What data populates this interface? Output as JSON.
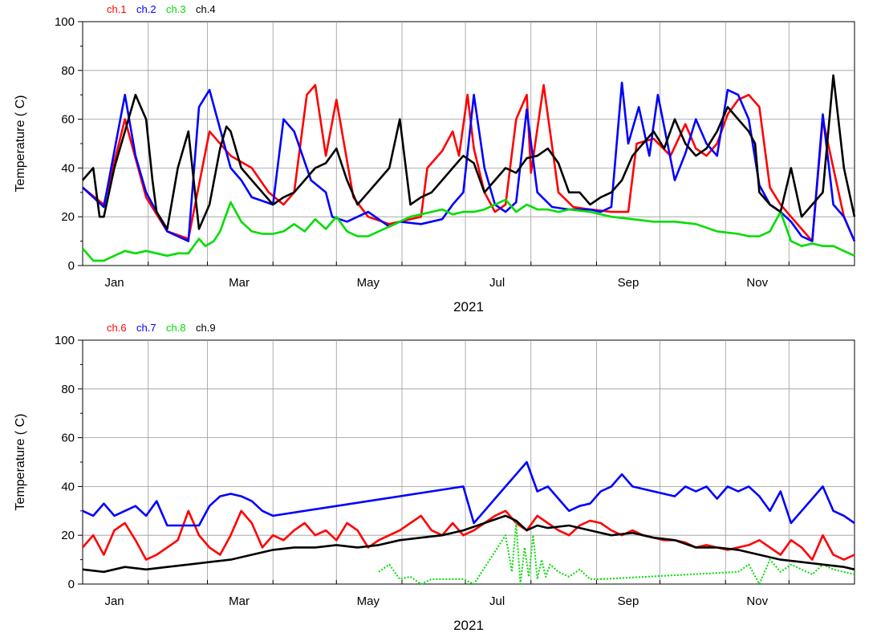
{
  "chart_data": [
    {
      "type": "line",
      "xlabel": "2021",
      "ylabel": "Temperature ( C)",
      "ylim": [
        0,
        100
      ],
      "yticks": [
        0,
        20,
        40,
        60,
        80,
        100
      ],
      "xlim": [
        0,
        365
      ],
      "month_ticks": [
        {
          "label": "Jan",
          "day": 15
        },
        {
          "label": "Mar",
          "day": 74
        },
        {
          "label": "May",
          "day": 135
        },
        {
          "label": "Jul",
          "day": 196
        },
        {
          "label": "Sep",
          "day": 258
        },
        {
          "label": "Nov",
          "day": 319
        }
      ],
      "grid": true,
      "legend_position": "top-left",
      "series": [
        {
          "name": "ch.1",
          "color": "#ff0000",
          "x": [
            0,
            10,
            20,
            30,
            40,
            50,
            60,
            70,
            80,
            88,
            95,
            100,
            106,
            110,
            115,
            120,
            128,
            135,
            145,
            150,
            160,
            163,
            170,
            175,
            178,
            182,
            185,
            190,
            195,
            200,
            205,
            210,
            212,
            218,
            225,
            232,
            240,
            250,
            258,
            262,
            270,
            278,
            285,
            290,
            295,
            300,
            305,
            310,
            315,
            320,
            325,
            330,
            335,
            340,
            345,
            350,
            355,
            360,
            365
          ],
          "y": [
            32,
            25,
            60,
            28,
            14,
            11,
            55,
            45,
            40,
            30,
            25,
            30,
            70,
            74,
            45,
            68,
            28,
            20,
            17,
            18,
            20,
            40,
            47,
            55,
            45,
            70,
            48,
            30,
            22,
            25,
            60,
            70,
            38,
            74,
            30,
            24,
            23,
            22,
            22,
            50,
            52,
            45,
            58,
            48,
            45,
            50,
            62,
            68,
            70,
            65,
            32,
            25,
            20,
            15,
            10,
            60,
            40,
            20,
            10
          ]
        },
        {
          "name": "ch.2",
          "color": "#0000ff",
          "x": [
            0,
            10,
            20,
            25,
            30,
            40,
            50,
            55,
            60,
            70,
            75,
            80,
            90,
            95,
            100,
            108,
            115,
            118,
            125,
            135,
            145,
            150,
            160,
            170,
            175,
            180,
            185,
            190,
            195,
            200,
            205,
            210,
            215,
            222,
            230,
            240,
            245,
            250,
            255,
            258,
            263,
            268,
            272,
            280,
            285,
            290,
            295,
            300,
            305,
            310,
            315,
            320,
            325,
            330,
            335,
            340,
            345,
            350,
            355,
            360,
            365
          ],
          "y": [
            32,
            24,
            70,
            45,
            30,
            14,
            10,
            65,
            72,
            40,
            35,
            28,
            25,
            60,
            55,
            35,
            30,
            20,
            18,
            22,
            16,
            18,
            17,
            19,
            25,
            30,
            70,
            40,
            25,
            22,
            26,
            64,
            30,
            24,
            23,
            23,
            22,
            24,
            75,
            50,
            65,
            45,
            70,
            35,
            46,
            60,
            50,
            45,
            72,
            70,
            60,
            33,
            25,
            22,
            18,
            12,
            10,
            62,
            25,
            20,
            10
          ]
        },
        {
          "name": "ch.3",
          "color": "#00dd00",
          "x": [
            0,
            5,
            10,
            15,
            20,
            25,
            30,
            35,
            40,
            45,
            50,
            55,
            58,
            62,
            65,
            70,
            75,
            80,
            85,
            90,
            95,
            100,
            105,
            110,
            115,
            120,
            125,
            130,
            135,
            140,
            145,
            150,
            155,
            160,
            165,
            170,
            175,
            180,
            185,
            190,
            195,
            200,
            205,
            210,
            215,
            220,
            225,
            230,
            240,
            250,
            260,
            270,
            280,
            290,
            300,
            310,
            315,
            320,
            325,
            330,
            335,
            340,
            345,
            350,
            355,
            360,
            365
          ],
          "y": [
            7,
            2,
            2,
            4,
            6,
            5,
            6,
            5,
            4,
            5,
            5,
            11,
            8,
            10,
            14,
            26,
            18,
            14,
            13,
            13,
            14,
            17,
            14,
            19,
            15,
            20,
            14,
            12,
            12,
            14,
            16,
            18,
            20,
            21,
            22,
            23,
            21,
            22,
            22,
            23,
            25,
            27,
            22,
            25,
            23,
            23,
            22,
            23,
            22,
            20,
            19,
            18,
            18,
            17,
            14,
            13,
            12,
            12,
            14,
            22,
            10,
            8,
            9,
            8,
            8,
            6,
            4
          ]
        },
        {
          "name": "ch.4",
          "color": "#000000",
          "x": [
            0,
            5,
            8,
            10,
            15,
            20,
            25,
            30,
            33,
            35,
            40,
            45,
            50,
            55,
            60,
            65,
            68,
            70,
            75,
            80,
            85,
            90,
            95,
            100,
            105,
            110,
            115,
            120,
            125,
            130,
            135,
            140,
            145,
            150,
            155,
            160,
            165,
            170,
            175,
            180,
            185,
            190,
            195,
            200,
            205,
            210,
            215,
            220,
            225,
            230,
            235,
            240,
            245,
            250,
            255,
            260,
            265,
            270,
            275,
            280,
            285,
            290,
            295,
            300,
            305,
            310,
            315,
            318,
            320,
            325,
            330,
            335,
            340,
            345,
            350,
            355,
            360,
            365
          ],
          "y": [
            35,
            40,
            20,
            20,
            40,
            55,
            70,
            60,
            35,
            22,
            15,
            40,
            55,
            15,
            25,
            48,
            57,
            55,
            40,
            35,
            30,
            25,
            28,
            30,
            35,
            40,
            42,
            48,
            35,
            25,
            30,
            35,
            40,
            60,
            25,
            28,
            30,
            35,
            40,
            45,
            42,
            30,
            35,
            40,
            38,
            44,
            45,
            48,
            42,
            30,
            30,
            25,
            28,
            30,
            35,
            45,
            50,
            55,
            48,
            60,
            50,
            45,
            48,
            55,
            65,
            60,
            55,
            50,
            30,
            25,
            22,
            40,
            20,
            25,
            30,
            78,
            40,
            20
          ]
        }
      ]
    },
    {
      "type": "line",
      "xlabel": "2021",
      "ylabel": "Temperature ( C)",
      "ylim": [
        0,
        100
      ],
      "yticks": [
        0,
        20,
        40,
        60,
        80,
        100
      ],
      "xlim": [
        0,
        365
      ],
      "month_ticks": [
        {
          "label": "Jan",
          "day": 15
        },
        {
          "label": "Mar",
          "day": 74
        },
        {
          "label": "May",
          "day": 135
        },
        {
          "label": "Jul",
          "day": 196
        },
        {
          "label": "Sep",
          "day": 258
        },
        {
          "label": "Nov",
          "day": 319
        }
      ],
      "grid": true,
      "legend_position": "top-left",
      "series": [
        {
          "name": "ch.6",
          "color": "#ff0000",
          "x": [
            0,
            5,
            10,
            15,
            20,
            25,
            30,
            35,
            40,
            45,
            50,
            55,
            60,
            65,
            70,
            75,
            80,
            85,
            90,
            95,
            100,
            105,
            110,
            115,
            120,
            125,
            130,
            135,
            140,
            145,
            150,
            155,
            160,
            165,
            170,
            175,
            180,
            185,
            190,
            195,
            200,
            205,
            210,
            215,
            220,
            225,
            230,
            235,
            240,
            245,
            250,
            255,
            260,
            265,
            270,
            275,
            280,
            285,
            290,
            295,
            300,
            305,
            310,
            315,
            320,
            325,
            330,
            335,
            340,
            345,
            350,
            355,
            360,
            365
          ],
          "y": [
            15,
            20,
            12,
            22,
            25,
            18,
            10,
            12,
            15,
            18,
            30,
            20,
            15,
            12,
            20,
            30,
            25,
            15,
            20,
            18,
            22,
            25,
            20,
            22,
            18,
            25,
            22,
            15,
            18,
            20,
            22,
            25,
            28,
            22,
            20,
            25,
            20,
            22,
            25,
            28,
            30,
            25,
            22,
            28,
            25,
            22,
            20,
            24,
            26,
            25,
            22,
            20,
            22,
            20,
            19,
            18,
            18,
            17,
            15,
            16,
            15,
            14,
            15,
            16,
            18,
            15,
            12,
            18,
            15,
            10,
            20,
            12,
            10,
            12
          ]
        },
        {
          "name": "ch.7",
          "color": "#0000ff",
          "x": [
            0,
            5,
            10,
            15,
            20,
            25,
            30,
            35,
            40,
            55,
            60,
            65,
            70,
            75,
            80,
            85,
            90,
            180,
            185,
            190,
            195,
            200,
            205,
            210,
            215,
            220,
            225,
            230,
            235,
            240,
            245,
            250,
            255,
            260,
            270,
            280,
            285,
            290,
            295,
            300,
            305,
            310,
            315,
            320,
            325,
            330,
            335,
            340,
            345,
            350,
            355,
            360,
            365
          ],
          "y": [
            30,
            28,
            33,
            28,
            30,
            32,
            28,
            34,
            24,
            24,
            32,
            36,
            37,
            36,
            34,
            30,
            28,
            40,
            25,
            30,
            35,
            40,
            45,
            50,
            38,
            40,
            35,
            30,
            32,
            33,
            38,
            40,
            45,
            40,
            38,
            36,
            40,
            38,
            40,
            35,
            40,
            38,
            40,
            36,
            30,
            38,
            25,
            30,
            35,
            40,
            30,
            28,
            25
          ]
        },
        {
          "name": "ch.8",
          "color": "#00dd00",
          "x": [
            140,
            145,
            150,
            155,
            160,
            165,
            180,
            185,
            200,
            203,
            205,
            207,
            209,
            211,
            213,
            215,
            217,
            219,
            221,
            225,
            230,
            235,
            240,
            245,
            310,
            315,
            320,
            325,
            330,
            335,
            340,
            345,
            350,
            355,
            360,
            365
          ],
          "y": [
            5,
            8,
            2,
            3,
            0,
            2,
            2,
            0,
            20,
            5,
            25,
            0,
            15,
            3,
            20,
            2,
            10,
            3,
            8,
            5,
            3,
            6,
            2,
            2,
            5,
            8,
            0,
            10,
            5,
            8,
            6,
            4,
            8,
            6,
            5,
            4
          ]
        },
        {
          "name": "ch.9",
          "color": "#000000",
          "x": [
            0,
            10,
            20,
            30,
            40,
            50,
            60,
            70,
            80,
            90,
            100,
            110,
            120,
            130,
            140,
            150,
            160,
            170,
            180,
            190,
            200,
            205,
            210,
            215,
            220,
            230,
            240,
            250,
            260,
            270,
            280,
            290,
            300,
            310,
            320,
            330,
            340,
            350,
            360,
            365
          ],
          "y": [
            6,
            5,
            7,
            6,
            7,
            8,
            9,
            10,
            12,
            14,
            15,
            15,
            16,
            15,
            16,
            18,
            19,
            20,
            22,
            25,
            28,
            26,
            22,
            24,
            23,
            24,
            22,
            20,
            21,
            19,
            18,
            15,
            15,
            14,
            12,
            10,
            9,
            8,
            7,
            6
          ]
        }
      ]
    }
  ]
}
